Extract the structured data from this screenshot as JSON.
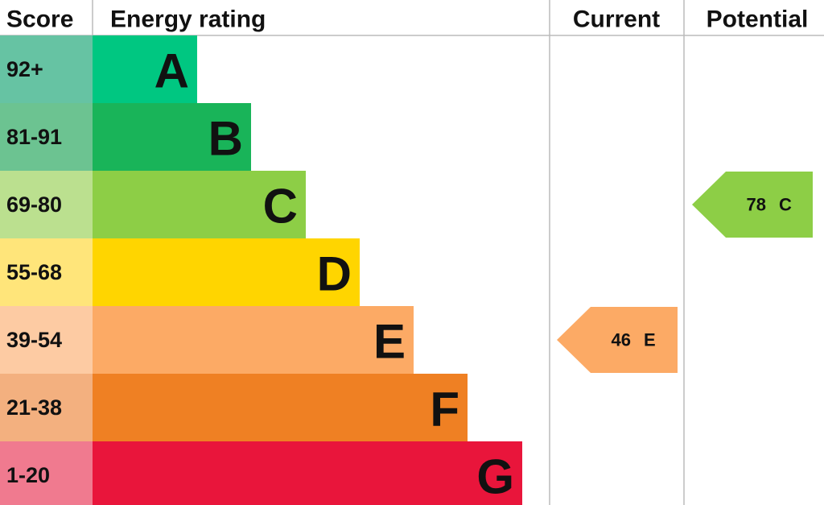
{
  "header": {
    "score": "Score",
    "rating": "Energy rating",
    "current": "Current",
    "potential": "Potential"
  },
  "bands": [
    {
      "score": "92+",
      "letter": "A",
      "color": "#00c781",
      "score_color": "#66c3a3"
    },
    {
      "score": "81-91",
      "letter": "B",
      "color": "#19b459",
      "score_color": "#6cc391"
    },
    {
      "score": "69-80",
      "letter": "C",
      "color": "#8dce46",
      "score_color": "#bbe08f"
    },
    {
      "score": "55-68",
      "letter": "D",
      "color": "#ffd500",
      "score_color": "#ffe57a"
    },
    {
      "score": "39-54",
      "letter": "E",
      "color": "#fcaa65",
      "score_color": "#fdcba3"
    },
    {
      "score": "21-38",
      "letter": "F",
      "color": "#ef8023",
      "score_color": "#f3b07f"
    },
    {
      "score": "1-20",
      "letter": "G",
      "color": "#e9153b",
      "score_color": "#f07a8f"
    }
  ],
  "current": {
    "value": 46,
    "letter": "E"
  },
  "potential": {
    "value": 78,
    "letter": "C"
  }
}
